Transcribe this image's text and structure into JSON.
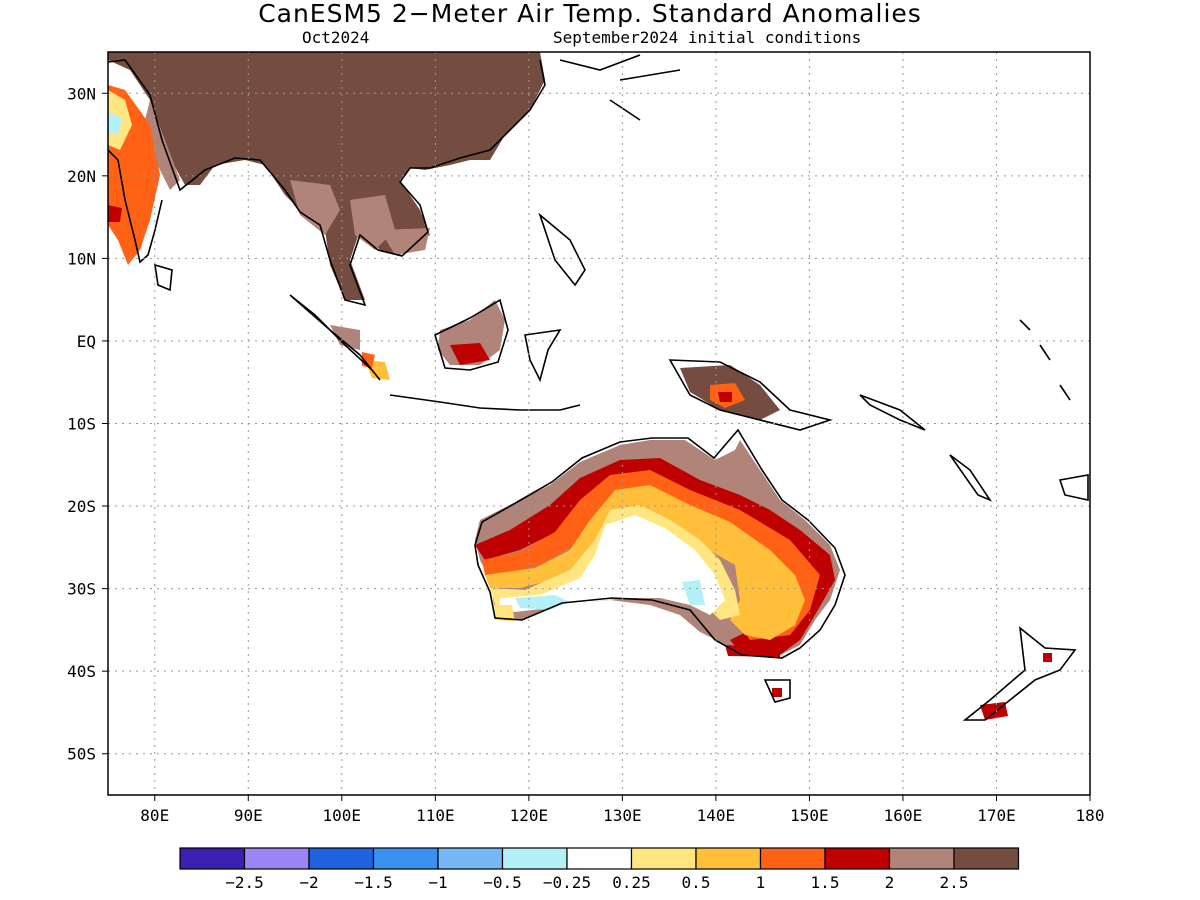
{
  "title": "CanESM5 2−Meter Air Temp. Standard Anomalies",
  "subtitle_left": "Oct2024",
  "subtitle_right": "September2024 initial conditions",
  "map": {
    "lon_range": [
      75,
      180
    ],
    "lat_range": [
      -55,
      35
    ],
    "lon_ticks": [
      "80E",
      "90E",
      "100E",
      "110E",
      "120E",
      "130E",
      "140E",
      "150E",
      "160E",
      "170E",
      "180"
    ],
    "lat_ticks": [
      "30N",
      "20N",
      "10N",
      "EQ",
      "10S",
      "20S",
      "30S",
      "40S",
      "50S"
    ],
    "gridlines": "dotted"
  },
  "colorbar": {
    "colors": [
      "#3b1fb0",
      "#9b85f5",
      "#1f63e0",
      "#3b91f0",
      "#75b8f5",
      "#b3f0f7",
      "#ffffff",
      "#ffe680",
      "#ffbf3b",
      "#ff6214",
      "#bf0000",
      "#b08478",
      "#754c40"
    ],
    "labels": [
      "−2.5",
      "−2",
      "−1.5",
      "−1",
      "−0.5",
      "−0.25",
      "0.25",
      "0.5",
      "1",
      "1.5",
      "2",
      "2.5"
    ]
  },
  "chart_data": {
    "type": "heatmap",
    "title": "CanESM5 2−Meter Air Temp. Standard Anomalies",
    "xlabel": "",
    "ylabel": "",
    "xlim": [
      75,
      180
    ],
    "ylim": [
      -55,
      35
    ],
    "levels": [
      -2.5,
      -2,
      -1.5,
      -1,
      -0.5,
      -0.25,
      0.25,
      0.5,
      1,
      1.5,
      2,
      2.5
    ],
    "regions": [
      {
        "area": "Mainland Southeast Asia / South China",
        "value_range": [
          2,
          3
        ]
      },
      {
        "area": "Western India",
        "value_range": [
          1,
          2
        ]
      },
      {
        "area": "Northern Australia coast",
        "value_range": [
          2,
          3
        ]
      },
      {
        "area": "Central-east Australia",
        "value_range": [
          0.5,
          2
        ]
      },
      {
        "area": "Southern Australia interior",
        "value_range": [
          -0.5,
          0.25
        ]
      },
      {
        "area": "Borneo",
        "value_range": [
          1.5,
          3
        ]
      },
      {
        "area": "New Guinea",
        "value_range": [
          1.5,
          3
        ]
      }
    ]
  }
}
